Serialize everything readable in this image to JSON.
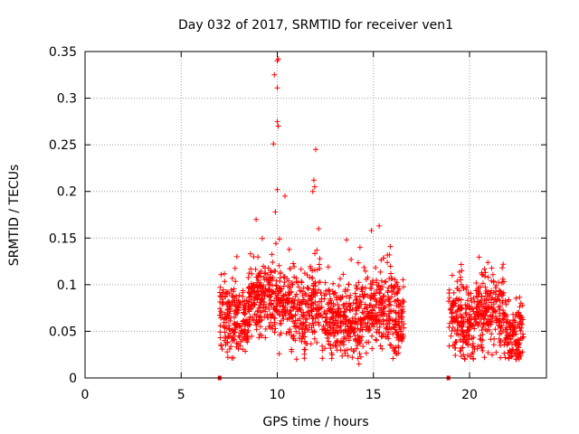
{
  "chart_data": {
    "type": "scatter",
    "title": "Day 032 of 2017, SRMTID for receiver ven1",
    "xlabel": "GPS time / hours",
    "ylabel": "SRMTID / TECUs",
    "xlim": [
      0,
      24
    ],
    "ylim": [
      0,
      0.35
    ],
    "xticks": [
      0,
      5,
      10,
      15,
      20
    ],
    "yticks": [
      0,
      0.05,
      0.1,
      0.15,
      0.2,
      0.25,
      0.3,
      0.35
    ],
    "grid": true,
    "marker": "+",
    "color": "#ff0000",
    "segments": [
      {
        "start": 7.0,
        "end": 16.6
      },
      {
        "start": 18.9,
        "end": 22.8
      }
    ],
    "peaks": [
      {
        "x": 10.05,
        "y": 0.342
      },
      {
        "x": 10.0,
        "y": 0.34
      },
      {
        "x": 9.85,
        "y": 0.325
      },
      {
        "x": 10.0,
        "y": 0.311
      },
      {
        "x": 10.0,
        "y": 0.275
      },
      {
        "x": 10.05,
        "y": 0.27
      },
      {
        "x": 9.8,
        "y": 0.251
      },
      {
        "x": 12.0,
        "y": 0.245
      },
      {
        "x": 11.9,
        "y": 0.212
      },
      {
        "x": 11.95,
        "y": 0.205
      },
      {
        "x": 10.0,
        "y": 0.202
      },
      {
        "x": 11.85,
        "y": 0.2
      },
      {
        "x": 10.4,
        "y": 0.195
      },
      {
        "x": 9.9,
        "y": 0.178
      },
      {
        "x": 8.9,
        "y": 0.17
      },
      {
        "x": 15.3,
        "y": 0.163
      },
      {
        "x": 14.9,
        "y": 0.158
      },
      {
        "x": 13.6,
        "y": 0.148
      },
      {
        "x": 12.15,
        "y": 0.16
      },
      {
        "x": 14.3,
        "y": 0.14
      },
      {
        "x": 21.75,
        "y": 0.122
      },
      {
        "x": 21.7,
        "y": 0.118
      },
      {
        "x": 7.9,
        "y": 0.13
      },
      {
        "x": 19.1,
        "y": 0.11
      },
      {
        "x": 13.9,
        "y": 0.022
      },
      {
        "x": 14.25,
        "y": 0.015
      },
      {
        "x": 10.1,
        "y": 0.026
      },
      {
        "x": 13.3,
        "y": 0.03
      }
    ],
    "zero_markers": [
      {
        "x": 7.0,
        "y": 0.0
      },
      {
        "x": 18.9,
        "y": 0.0
      }
    ]
  }
}
